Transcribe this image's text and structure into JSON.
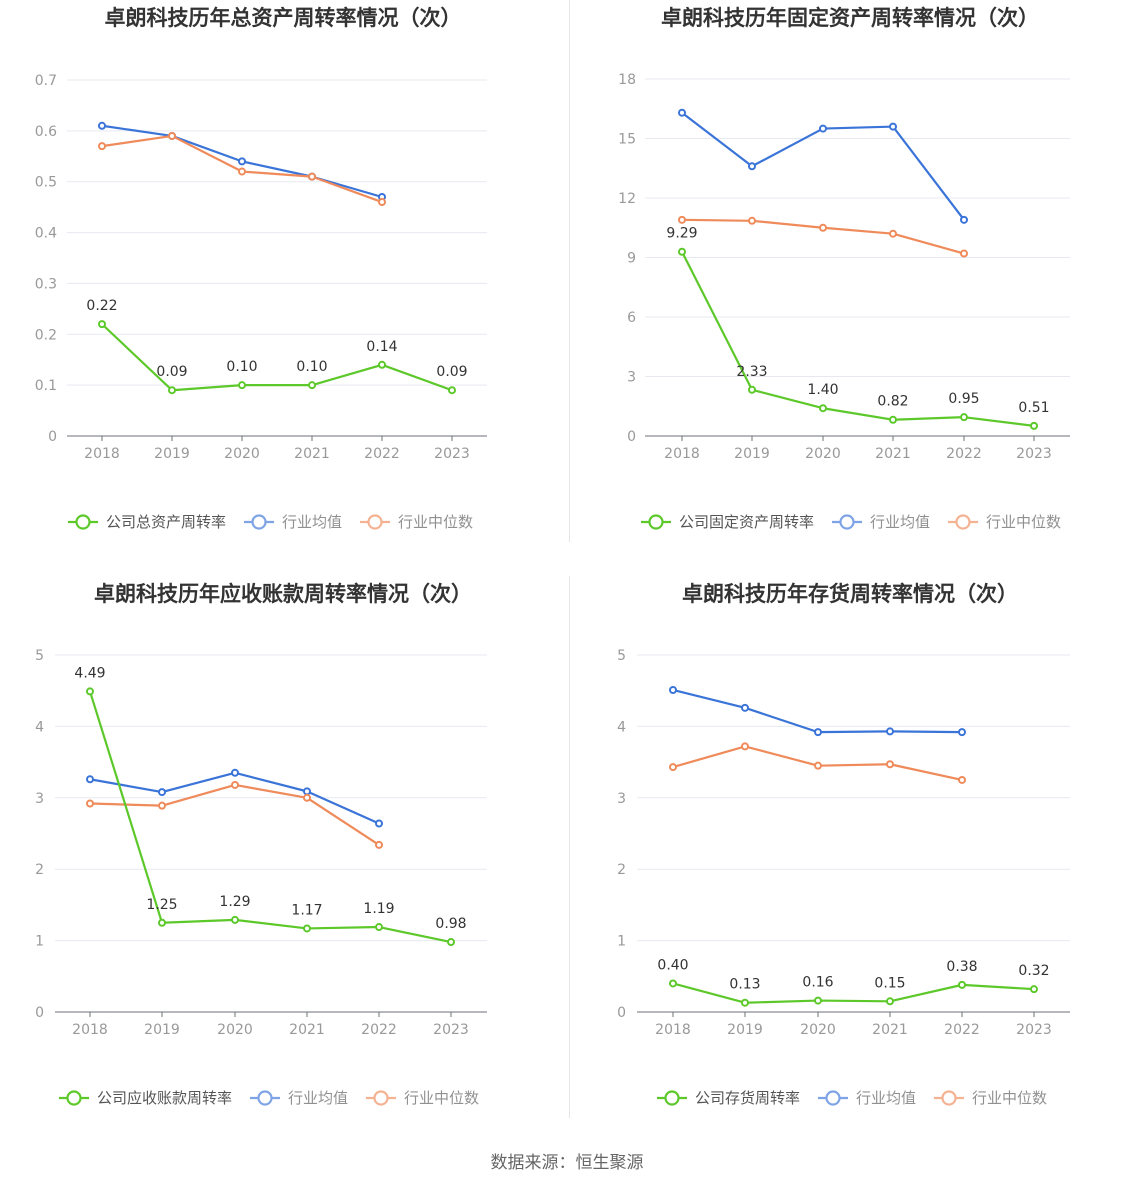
{
  "source": "数据来源：恒生聚源",
  "colors": {
    "company": "#5cc82a",
    "avg": "#3b74d8",
    "median": "#ef8a5a"
  },
  "chart_data": [
    {
      "type": "line",
      "title": "卓朗科技历年总资产周转率情况（次）",
      "x": [
        "2018",
        "2019",
        "2020",
        "2021",
        "2022",
        "2023"
      ],
      "ylim": [
        0,
        0.7
      ],
      "yticks": [
        0,
        0.1,
        0.2,
        0.3,
        0.4,
        0.5,
        0.6,
        0.7
      ],
      "ytick_labels": [
        "0",
        "0.1",
        "0.2",
        "0.3",
        "0.4",
        "0.5",
        "0.6",
        "0.7"
      ],
      "grid": true,
      "legend_position": "bottom",
      "series": [
        {
          "name": "公司总资产周转率",
          "values": [
            0.22,
            0.09,
            0.1,
            0.1,
            0.14,
            0.09
          ],
          "labels": [
            "0.22",
            "0.09",
            "0.10",
            "0.10",
            "0.14",
            "0.09"
          ]
        },
        {
          "name": "行业均值",
          "values": [
            0.61,
            0.59,
            0.54,
            0.51,
            0.47,
            null
          ]
        },
        {
          "name": "行业中位数",
          "values": [
            0.57,
            0.59,
            0.52,
            0.51,
            0.46,
            null
          ]
        }
      ]
    },
    {
      "type": "line",
      "title": "卓朗科技历年固定资产周转率情况（次）",
      "x": [
        "2018",
        "2019",
        "2020",
        "2021",
        "2022",
        "2023"
      ],
      "ylim": [
        0,
        18
      ],
      "yticks": [
        0,
        3,
        6,
        9,
        12,
        15,
        18
      ],
      "ytick_labels": [
        "0",
        "3",
        "6",
        "9",
        "12",
        "15",
        "18"
      ],
      "grid": true,
      "legend_position": "bottom",
      "series": [
        {
          "name": "公司固定资产周转率",
          "values": [
            9.29,
            2.33,
            1.4,
            0.82,
            0.95,
            0.51
          ],
          "labels": [
            "9.29",
            "2.33",
            "1.40",
            "0.82",
            "0.95",
            "0.51"
          ]
        },
        {
          "name": "行业均值",
          "values": [
            16.3,
            13.6,
            15.5,
            15.6,
            10.9,
            null
          ]
        },
        {
          "name": "行业中位数",
          "values": [
            10.9,
            10.85,
            10.5,
            10.2,
            9.2,
            null
          ]
        }
      ]
    },
    {
      "type": "line",
      "title": "卓朗科技历年应收账款周转率情况（次）",
      "x": [
        "2018",
        "2019",
        "2020",
        "2021",
        "2022",
        "2023"
      ],
      "ylim": [
        0,
        5
      ],
      "yticks": [
        0,
        1,
        2,
        3,
        4,
        5
      ],
      "ytick_labels": [
        "0",
        "1",
        "2",
        "3",
        "4",
        "5"
      ],
      "grid": true,
      "legend_position": "bottom",
      "series": [
        {
          "name": "公司应收账款周转率",
          "values": [
            4.49,
            1.25,
            1.29,
            1.17,
            1.19,
            0.98
          ],
          "labels": [
            "4.49",
            "1.25",
            "1.29",
            "1.17",
            "1.19",
            "0.98"
          ]
        },
        {
          "name": "行业均值",
          "values": [
            3.26,
            3.08,
            3.35,
            3.09,
            2.64,
            null
          ]
        },
        {
          "name": "行业中位数",
          "values": [
            2.92,
            2.89,
            3.18,
            3.0,
            2.34,
            null
          ]
        }
      ]
    },
    {
      "type": "line",
      "title": "卓朗科技历年存货周转率情况（次）",
      "x": [
        "2018",
        "2019",
        "2020",
        "2021",
        "2022",
        "2023"
      ],
      "ylim": [
        0,
        5
      ],
      "yticks": [
        0,
        1,
        2,
        3,
        4,
        5
      ],
      "ytick_labels": [
        "0",
        "1",
        "2",
        "3",
        "4",
        "5"
      ],
      "grid": true,
      "legend_position": "bottom",
      "series": [
        {
          "name": "公司存货周转率",
          "values": [
            0.4,
            0.13,
            0.16,
            0.15,
            0.38,
            0.32
          ],
          "labels": [
            "0.40",
            "0.13",
            "0.16",
            "0.15",
            "0.38",
            "0.32"
          ]
        },
        {
          "name": "行业均值",
          "values": [
            4.51,
            4.26,
            3.92,
            3.93,
            3.92,
            null
          ]
        },
        {
          "name": "行业中位数",
          "values": [
            3.43,
            3.72,
            3.45,
            3.47,
            3.25,
            null
          ]
        }
      ]
    }
  ]
}
